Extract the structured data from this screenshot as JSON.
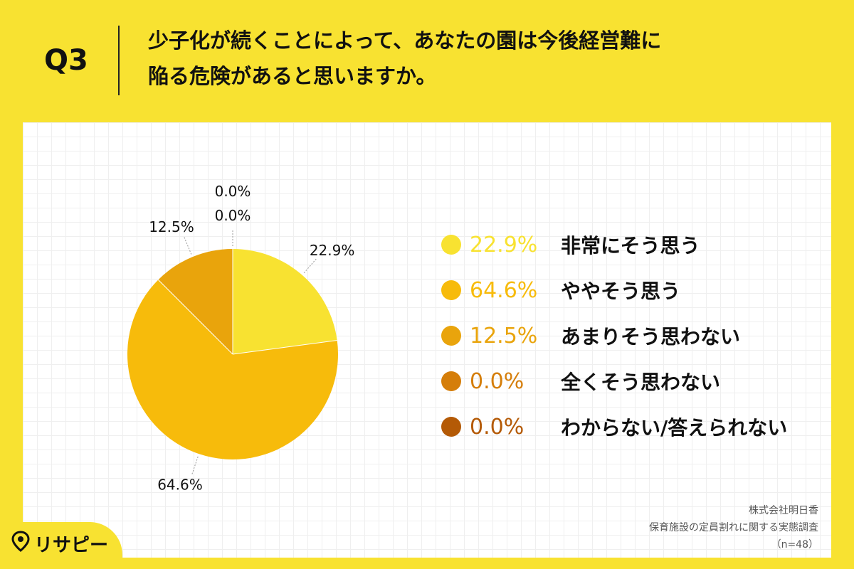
{
  "header": {
    "q_number": "Q3",
    "question_line1": "少子化が続くことによって、あなたの園は今後経営難に",
    "question_line2": "陥る危険があると思いますか。"
  },
  "chart_data": {
    "type": "pie",
    "start": "top",
    "direction": "clockwise",
    "slices": [
      {
        "label": "非常にそう思う",
        "value": 22.9,
        "display": "22.9%",
        "color": "#f8e231"
      },
      {
        "label": "ややそう思う",
        "value": 64.6,
        "display": "64.6%",
        "color": "#f7bb0b"
      },
      {
        "label": "あまりそう思わない",
        "value": 12.5,
        "display": "12.5%",
        "color": "#e9a40c"
      },
      {
        "label": "全くそう思わない",
        "value": 0.0,
        "display": "0.0%",
        "color": "#d57e0a"
      },
      {
        "label": "わからない/答えられない",
        "value": 0.0,
        "display": "0.0%",
        "color": "#b45a06"
      }
    ]
  },
  "footer": {
    "company": "株式会社明日香",
    "survey": "保育施設の定員割れに関する実態調査",
    "sample": "（n=48）"
  },
  "logo": {
    "text": "リサピー",
    "icon": "map-pin-icon"
  }
}
